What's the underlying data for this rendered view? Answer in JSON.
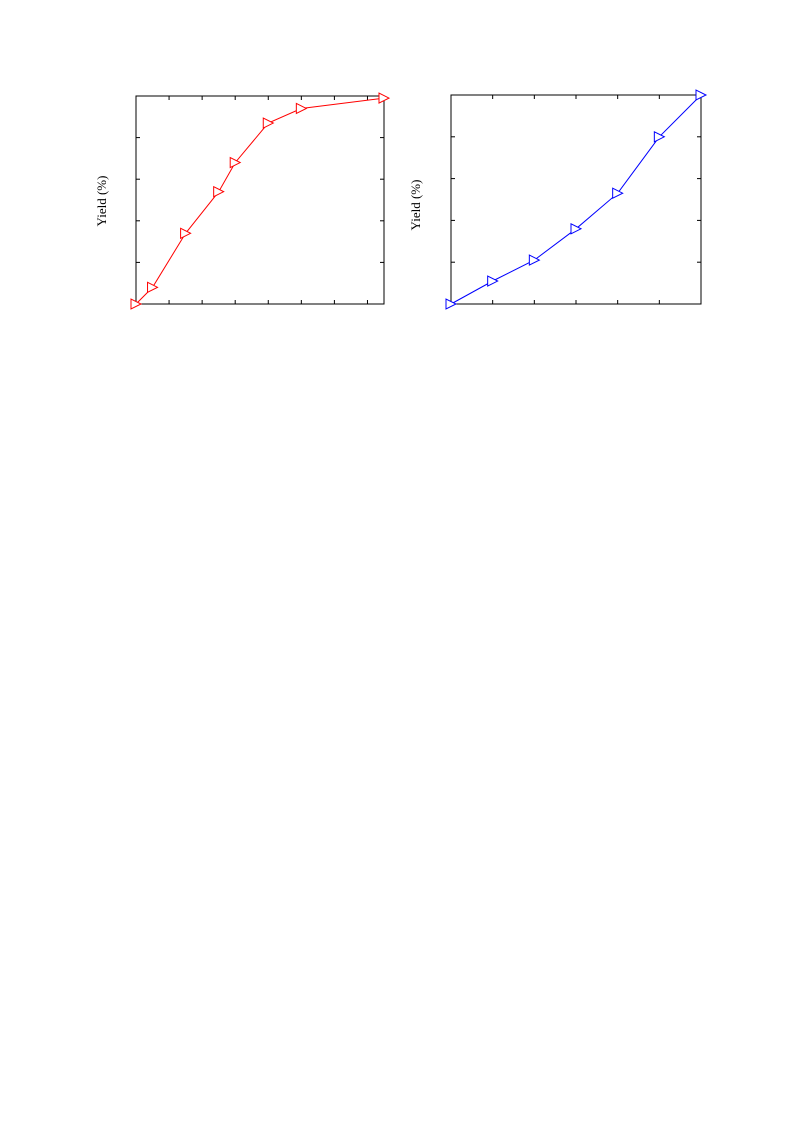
{
  "chart_data": [
    {
      "type": "line",
      "ylabel": "Yield (%)",
      "xlim": [
        0,
        15
      ],
      "ylim": [
        0,
        100
      ],
      "x_ticks": [
        0,
        2,
        4,
        6,
        8,
        10,
        12,
        14,
        15
      ],
      "y_ticks": [
        0,
        20,
        40,
        60,
        80,
        100
      ],
      "x_tick_labels_visible": false,
      "y_tick_labels_visible": false,
      "color": "#ff0000",
      "marker": "triangle-right",
      "series": [
        {
          "x": [
            0,
            1,
            3,
            5,
            6,
            8,
            10,
            15
          ],
          "y": [
            0,
            8,
            34,
            54,
            68,
            87,
            94,
            99
          ]
        }
      ]
    },
    {
      "type": "line",
      "ylabel": "Yield (%)",
      "xlim": [
        0,
        6
      ],
      "ylim": [
        0,
        100
      ],
      "x_ticks": [
        0,
        1,
        2,
        3,
        4,
        5,
        6
      ],
      "y_ticks": [
        0,
        20,
        40,
        60,
        80,
        100
      ],
      "x_tick_labels_visible": false,
      "y_tick_labels_visible": false,
      "color": "#0000ff",
      "marker": "triangle-right",
      "series": [
        {
          "x": [
            0,
            1,
            2,
            3,
            4,
            5,
            6
          ],
          "y": [
            0,
            11,
            21,
            36,
            53,
            80,
            100
          ]
        }
      ]
    }
  ]
}
